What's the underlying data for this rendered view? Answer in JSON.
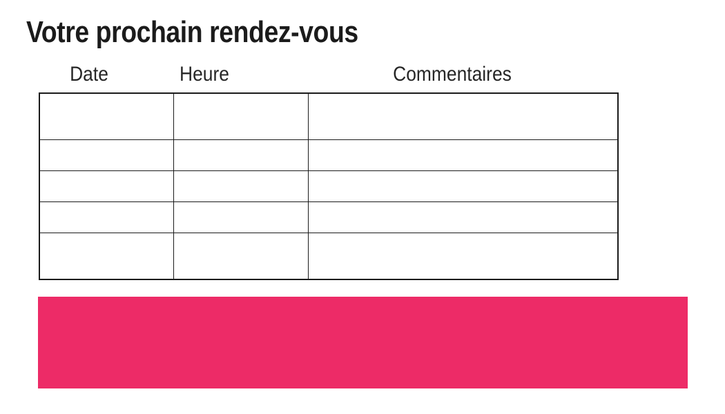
{
  "page": {
    "title": "Votre prochain rendez-vous",
    "background": "#ffffff"
  },
  "table": {
    "headers": [
      "Date",
      "Heure",
      "Commentaires"
    ],
    "rows": [
      [
        "",
        "",
        ""
      ],
      [
        "",
        "",
        ""
      ],
      [
        "",
        "",
        ""
      ],
      [
        "",
        "",
        ""
      ],
      [
        "",
        "",
        ""
      ]
    ]
  },
  "highlight_bar": {
    "text": "",
    "color": "#ED2B67"
  },
  "colors": {
    "accent_pink": "#ED2B67",
    "ink": "#1a1a1a",
    "table_border": "#1a1a1a",
    "background": "#ffffff"
  }
}
